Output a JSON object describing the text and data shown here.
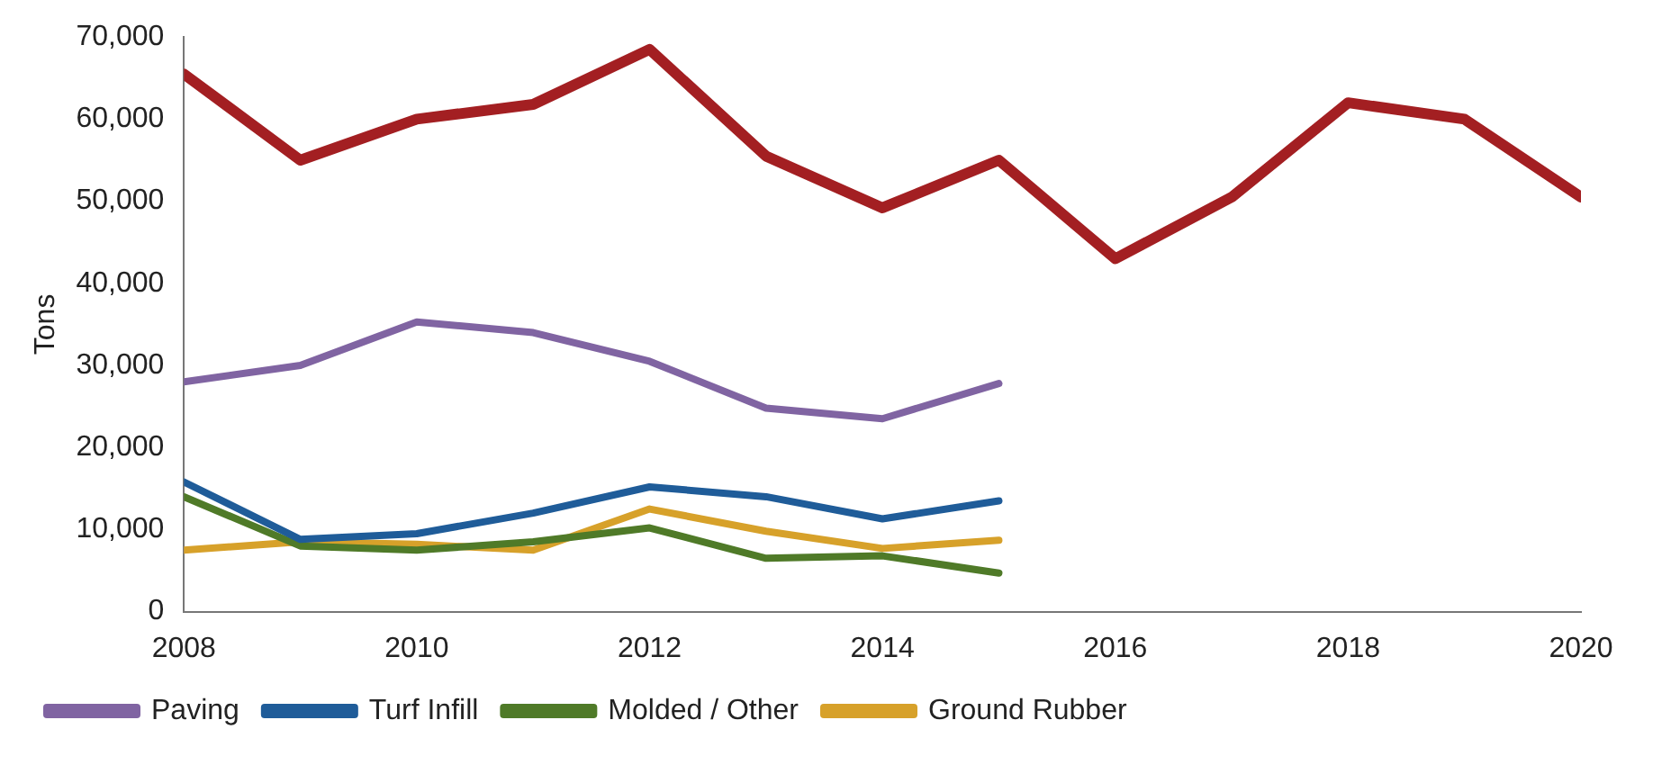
{
  "chart_data": {
    "type": "line",
    "ylabel": "Tons",
    "xlim": [
      2008,
      2020
    ],
    "xticks": [
      2008,
      2010,
      2012,
      2014,
      2016,
      2018,
      2020
    ],
    "ylim": [
      0,
      70000
    ],
    "yticks": [
      {
        "value": 0,
        "label": "0"
      },
      {
        "value": 10000,
        "label": "10,000"
      },
      {
        "value": 20000,
        "label": "20,000"
      },
      {
        "value": 30000,
        "label": "30,000"
      },
      {
        "value": 40000,
        "label": "40,000"
      },
      {
        "value": 50000,
        "label": "50,000"
      },
      {
        "value": 60000,
        "label": "60,000"
      },
      {
        "value": 70000,
        "label": "70,000"
      }
    ],
    "grid": false,
    "legend": "bottom",
    "marker": "none",
    "line_style": "solid",
    "series": [
      {
        "color": "#a31f22",
        "x": [
          2008,
          2009,
          2010,
          2011,
          2012,
          2013,
          2014,
          2015,
          2016,
          2017,
          2018,
          2019,
          2020
        ],
        "values": [
          65500,
          55000,
          60000,
          61800,
          68500,
          55500,
          49200,
          55000,
          43000,
          50500,
          62000,
          60000,
          50500
        ]
      },
      {
        "name": "Paving",
        "color": "#8064a2",
        "x": [
          2008,
          2009,
          2010,
          2011,
          2012,
          2013,
          2014,
          2015
        ],
        "values": [
          28000,
          30000,
          35300,
          34000,
          30500,
          24800,
          23500,
          27800
        ]
      },
      {
        "name": "Turf Infill",
        "color": "#1f5c99",
        "x": [
          2008,
          2009,
          2010,
          2011,
          2012,
          2013,
          2014,
          2015
        ],
        "values": [
          15800,
          8800,
          9500,
          12000,
          15200,
          14000,
          11300,
          13500
        ]
      },
      {
        "name": "Molded / Other",
        "color": "#4f7a28",
        "x": [
          2008,
          2009,
          2010,
          2011,
          2012,
          2013,
          2014,
          2015
        ],
        "values": [
          14000,
          8000,
          7500,
          8500,
          10200,
          6500,
          6800,
          4700
        ]
      },
      {
        "name": "Ground Rubber",
        "color": "#d7a12a",
        "x": [
          2008,
          2009,
          2010,
          2011,
          2012,
          2013,
          2014,
          2015
        ],
        "values": [
          7500,
          8500,
          8200,
          7500,
          12500,
          9800,
          7700,
          8700
        ]
      }
    ]
  }
}
